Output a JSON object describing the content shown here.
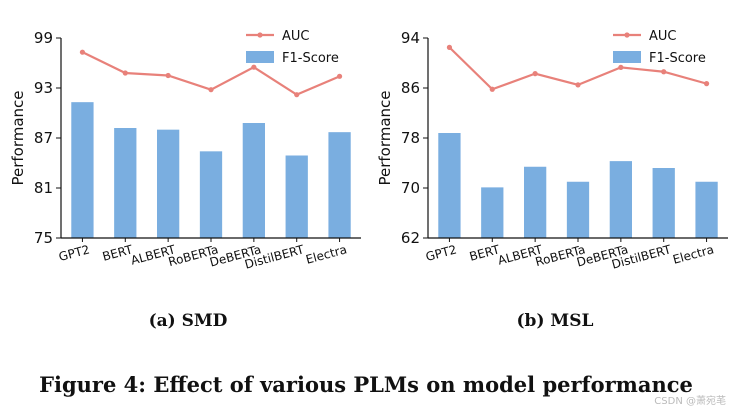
{
  "chart_data": [
    {
      "type": "bar",
      "title": "",
      "xlabel": "",
      "ylabel": "Performance",
      "ylim": [
        75,
        99
      ],
      "yticks": [
        75,
        81,
        87,
        93,
        99
      ],
      "categories": [
        "GPT2",
        "BERT",
        "ALBERT",
        "RoBERTa",
        "DeBERTa",
        "DistilBERT",
        "Electra"
      ],
      "series": [
        {
          "name": "AUC",
          "kind": "line",
          "color": "#e8817a",
          "values": [
            97.3,
            94.8,
            94.5,
            92.8,
            95.5,
            92.2,
            94.4
          ]
        },
        {
          "name": "F1-Score",
          "kind": "bar",
          "color": "#7aaee0",
          "values": [
            91.3,
            88.2,
            88.0,
            85.4,
            88.8,
            84.9,
            87.7
          ]
        }
      ],
      "legend": "top-right",
      "caption": "(a) SMD"
    },
    {
      "type": "bar",
      "title": "",
      "xlabel": "",
      "ylabel": "Performance",
      "ylim": [
        62,
        94
      ],
      "yticks": [
        62,
        70,
        78,
        86,
        94
      ],
      "categories": [
        "GPT2",
        "BERT",
        "ALBERT",
        "RoBERTa",
        "DeBERTa",
        "DistilBERT",
        "Electra"
      ],
      "series": [
        {
          "name": "AUC",
          "kind": "line",
          "color": "#e8817a",
          "values": [
            92.5,
            85.8,
            88.3,
            86.5,
            89.3,
            88.6,
            86.7
          ]
        },
        {
          "name": "F1-Score",
          "kind": "bar",
          "color": "#7aaee0",
          "values": [
            78.8,
            70.1,
            73.4,
            71.0,
            74.3,
            73.2,
            71.0
          ]
        }
      ],
      "legend": "top-right",
      "caption": "(b) MSL"
    }
  ],
  "figure_caption": "Figure 4: Effect of various PLMs on model performance",
  "watermark": "CSDN @萧宛芼"
}
